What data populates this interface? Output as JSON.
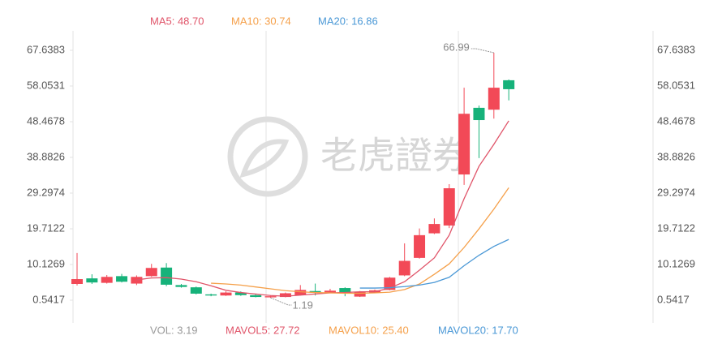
{
  "chart_data": {
    "type": "candlestick",
    "ylim": [
      -4.25,
      72.87
    ],
    "yticks": [
      0.5417,
      10.1269,
      19.7122,
      29.2974,
      38.8826,
      48.4678,
      58.0531,
      67.6383
    ],
    "up_color": "#f24957",
    "down_color": "#16b27a",
    "open": [
      4.9,
      6.4,
      5.2,
      7.0,
      5.0,
      7.0,
      9.3,
      4.6,
      4.0,
      2.1,
      1.8,
      2.6,
      1.9,
      1.3,
      1.4,
      1.9,
      3.0,
      2.6,
      3.8,
      1.5,
      2.6,
      3.3,
      7.2,
      11.9,
      18.5,
      20.6,
      34.3,
      52.2,
      51.7,
      59.6
    ],
    "high": [
      13.2,
      7.5,
      7.3,
      7.6,
      7.2,
      10.3,
      10.5,
      4.9,
      4.2,
      2.3,
      2.9,
      2.9,
      2.1,
      1.8,
      2.6,
      4.6,
      5.0,
      3.6,
      4.0,
      3.0,
      3.4,
      6.8,
      15.8,
      19.8,
      22.5,
      31.7,
      57.6,
      52.8,
      66.99,
      59.8
    ],
    "low": [
      4.5,
      4.9,
      5.0,
      5.3,
      4.6,
      6.8,
      4.3,
      3.9,
      2.1,
      1.6,
      1.7,
      1.7,
      1.3,
      1.19,
      1.3,
      1.8,
      1.8,
      2.4,
      1.6,
      1.4,
      2.5,
      3.2,
      7.0,
      11.7,
      18.3,
      19.9,
      31.5,
      38.7,
      49.3,
      54.2
    ],
    "close": [
      6.2,
      5.3,
      6.8,
      5.5,
      6.8,
      9.2,
      4.7,
      4.1,
      2.3,
      1.8,
      2.6,
      1.9,
      1.4,
      1.6,
      2.4,
      3.3,
      2.6,
      3.1,
      2.4,
      2.8,
      3.2,
      6.6,
      11.1,
      18.0,
      21.0,
      30.6,
      50.6,
      48.9,
      57.6,
      57.2
    ],
    "series": [
      {
        "name": "MA5: 48.70",
        "color": "#e05469",
        "values": [
          null,
          null,
          null,
          null,
          6.0,
          6.5,
          6.6,
          6.2,
          5.5,
          4.4,
          3.2,
          2.6,
          2.2,
          1.8,
          1.6,
          1.9,
          2.2,
          2.5,
          2.6,
          2.8,
          2.8,
          3.8,
          5.5,
          8.6,
          11.9,
          18.0,
          27.8,
          36.5,
          42.4,
          48.7
        ]
      },
      {
        "name": "MA10: 30.74",
        "color": "#f5a04a",
        "values": [
          null,
          null,
          null,
          null,
          null,
          null,
          null,
          null,
          null,
          5.1,
          4.9,
          4.6,
          4.1,
          3.6,
          3.1,
          2.8,
          2.6,
          2.5,
          2.4,
          2.4,
          2.5,
          2.7,
          3.4,
          4.9,
          7.5,
          10.3,
          14.7,
          19.7,
          25.0,
          30.74
        ]
      },
      {
        "name": "MA20: 16.86",
        "color": "#4a98d6",
        "values": [
          null,
          null,
          null,
          null,
          null,
          null,
          null,
          null,
          null,
          null,
          null,
          null,
          null,
          null,
          null,
          null,
          null,
          null,
          null,
          3.8,
          3.8,
          3.9,
          4.2,
          4.6,
          5.3,
          6.7,
          9.8,
          12.6,
          15.0,
          16.86
        ]
      }
    ],
    "max_label": "66.99",
    "min_label": "1.19",
    "watermark": "老虎證券",
    "volume_legend": [
      {
        "text": "VOL: 3.19",
        "color": "#999999"
      },
      {
        "text": "MAVOL5: 27.72",
        "color": "#e05469"
      },
      {
        "text": "MAVOL10: 25.40",
        "color": "#f5a04a"
      },
      {
        "text": "MAVOL20: 17.70",
        "color": "#4a98d6"
      }
    ]
  }
}
